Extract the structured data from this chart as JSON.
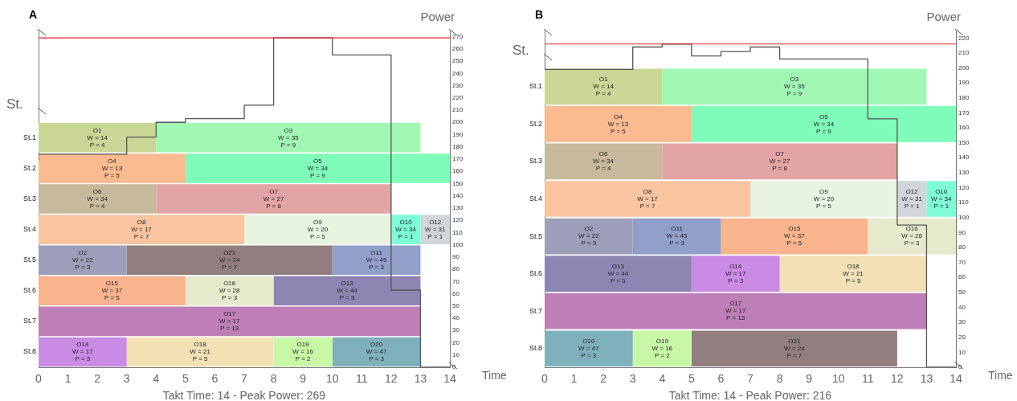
{
  "chart_data": [
    {
      "type": "bar",
      "title": "A",
      "orientation": "horizontal",
      "stacked": true,
      "categories": [
        "St.1",
        "St.2",
        "St.3",
        "St.4",
        "St.5",
        "St.6",
        "St.7",
        "St.8"
      ],
      "xlabel": "Time",
      "ylabel": "St.",
      "xlim": [
        0,
        14
      ],
      "xticks": [
        0,
        1,
        2,
        3,
        4,
        5,
        6,
        7,
        8,
        9,
        10,
        11,
        12,
        13,
        14
      ],
      "series": [
        {
          "values": [
            4,
            5,
            4,
            7,
            3,
            5,
            13,
            3
          ],
          "colors": [
            "#c9d696",
            "#f9bb8f",
            "#c7b99b",
            "#f9c49f",
            "#9d9fba",
            "#f9b48e",
            "#bd7fb5",
            "#c98be4"
          ],
          "value_labels": [
            "O1\nW = 14\nP = 4",
            "O4\nW = 13\nP = 5",
            "O6\nW = 34\nP = 4",
            "O8\nW = 17\nP = 7",
            "O2\nW = 22\nP = 3",
            "O15\nW = 37\nP = 5",
            "O17\nW = 17\nP = 13",
            "O14\nW = 17\nP = 3"
          ]
        },
        {
          "values": [
            9,
            9,
            8,
            5,
            7,
            3,
            null,
            5
          ],
          "colors": [
            "#a0f7b4",
            "#7ffcb9",
            "#e3a4a5",
            "#e8f4e0",
            "#927e7f",
            "#e7e9cd",
            null,
            "#f3e1b6"
          ],
          "value_labels": [
            "O3\nW = 35\nP = 9",
            "O5\nW = 34\nP = 9",
            "O7\nW = 27\nP = 8",
            "O9\nW = 20\nP = 5",
            "O21\nW = 24\nP = 7",
            "O16\nW = 28\nP = 3",
            null,
            "O18\nW = 21\nP = 5"
          ]
        },
        {
          "values": [
            null,
            null,
            null,
            1,
            3,
            5,
            null,
            2
          ],
          "colors": [
            null,
            null,
            null,
            "#7ffcd6",
            "#919fc9",
            "#8e85b3",
            null,
            "#c8f7a6"
          ],
          "value_labels": [
            null,
            null,
            null,
            "O10\nW = 34\nP = 1",
            "O11\nW = 45\nP = 3",
            "O13\nW = 44\nP = 5",
            null,
            "O19\nW = 16\nP = 2"
          ]
        },
        {
          "values": [
            null,
            null,
            null,
            1,
            null,
            null,
            null,
            3
          ],
          "colors": [
            null,
            null,
            null,
            "#d0d6da",
            null,
            null,
            null,
            "#7fb1bc"
          ],
          "value_labels": [
            null,
            null,
            null,
            "O12\nW = 31\nP = 1",
            null,
            null,
            null,
            "O20\nW = 47\nP = 3"
          ]
        }
      ],
      "annotations": [
        "Takt Time: 14 - Peak Power: 269"
      ]
    },
    {
      "type": "step",
      "ylabel": "Power",
      "marker": "none",
      "tick_labels": "y",
      "x": [
        0,
        3,
        4,
        5,
        7,
        8,
        10,
        12,
        13,
        14
      ],
      "values": [
        169,
        174,
        188,
        200,
        203,
        214,
        269,
        255,
        63,
        0
      ],
      "color": "#555555",
      "xlim": [
        0,
        14
      ],
      "ylim": [
        0,
        275
      ],
      "yticks": [
        0,
        10,
        20,
        30,
        40,
        50,
        60,
        70,
        80,
        90,
        100,
        110,
        120,
        130,
        140,
        150,
        160,
        170,
        180,
        190,
        200,
        210,
        220,
        230,
        240,
        250,
        260,
        270
      ],
      "ref_lines": [
        {
          "axis": "y",
          "value": 269,
          "color": "#e8262a"
        }
      ]
    },
    {
      "type": "bar",
      "title": "B",
      "orientation": "horizontal",
      "stacked": true,
      "categories": [
        "St.1",
        "St.2",
        "St.3",
        "St.4",
        "St.5",
        "St.6",
        "St.7",
        "St.8"
      ],
      "xlabel": "Time",
      "ylabel": "St.",
      "xlim": [
        0,
        14
      ],
      "xticks": [
        0,
        1,
        2,
        3,
        4,
        5,
        6,
        7,
        8,
        9,
        10,
        11,
        12,
        13,
        14
      ],
      "series": [
        {
          "values": [
            4,
            5,
            4,
            7,
            3,
            5,
            13,
            3
          ],
          "colors": [
            "#c9d696",
            "#f9bb8f",
            "#c7b99b",
            "#f9c49f",
            "#9d9fba",
            "#8e85b3",
            "#bd7fb5",
            "#7fb1bc"
          ],
          "value_labels": [
            "O1\nW = 14\nP = 4",
            "O4\nW = 13\nP = 5",
            "O6\nW = 34\nP = 4",
            "O8\nW = 17\nP = 7",
            "O2\nW = 22\nP = 3",
            "O13\nW = 44\nP = 5",
            "O17\nW = 17\nP = 13",
            "O20\nW = 47\nP = 3"
          ]
        },
        {
          "values": [
            9,
            9,
            8,
            5,
            3,
            3,
            null,
            2
          ],
          "colors": [
            "#a0f7b4",
            "#7ffcb9",
            "#e3a4a5",
            "#e8f4e0",
            "#919fc9",
            "#c98be4",
            null,
            "#c8f7a6"
          ],
          "value_labels": [
            "O3\nW = 35\nP = 9",
            "O5\nW = 34\nP = 9",
            "O7\nW = 27\nP = 8",
            "O9\nW = 20\nP = 5",
            "O11\nW = 45\nP = 3",
            "O14\nW = 17\nP = 3",
            null,
            "O19\nW = 16\nP = 2"
          ]
        },
        {
          "values": [
            null,
            null,
            null,
            1,
            5,
            5,
            null,
            7
          ],
          "colors": [
            null,
            null,
            null,
            "#d0d6da",
            "#f9b48e",
            "#f3e1b6",
            null,
            "#927e7f"
          ],
          "value_labels": [
            null,
            null,
            null,
            "O12\nW = 31\nP = 1",
            "O15\nW = 37\nP = 5",
            "O18\nW = 21\nP = 5",
            null,
            "O21\nW = 24\nP = 7"
          ]
        },
        {
          "values": [
            null,
            null,
            null,
            1,
            3,
            null,
            null,
            null
          ],
          "colors": [
            null,
            null,
            null,
            "#7ffcd6",
            "#e7e9cd",
            null,
            null,
            null
          ],
          "value_labels": [
            null,
            null,
            null,
            "O10\nW = 34\nP = 1",
            "O16\nW = 28\nP = 3",
            null,
            null,
            null
          ]
        }
      ],
      "annotations": [
        "Takt Time: 14 - Peak Power: 216"
      ]
    },
    {
      "type": "step",
      "ylabel": "Power",
      "marker": "none",
      "tick_labels": "y",
      "x": [
        0,
        3,
        4,
        5,
        6,
        7,
        8,
        11,
        12,
        13,
        14
      ],
      "values": [
        207,
        199,
        214,
        216,
        208,
        211,
        214,
        206,
        166,
        95,
        0
      ],
      "color": "#555555",
      "xlim": [
        0,
        14
      ],
      "ylim": [
        0,
        225
      ],
      "yticks": [
        0,
        10,
        20,
        30,
        40,
        50,
        60,
        70,
        80,
        90,
        100,
        110,
        120,
        130,
        140,
        150,
        160,
        170,
        180,
        190,
        200,
        210,
        220
      ],
      "ref_lines": [
        {
          "axis": "y",
          "value": 216,
          "color": "#e8262a"
        }
      ]
    }
  ]
}
